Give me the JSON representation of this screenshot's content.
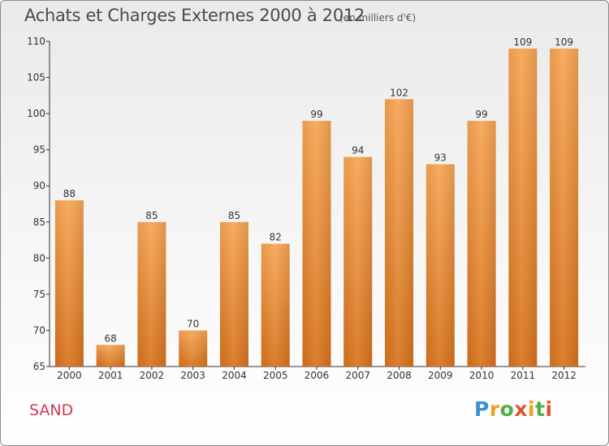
{
  "header": {
    "title": "Achats et Charges Externes 2000 à 2012",
    "subtitle": "(en milliers d'€)"
  },
  "footer": {
    "city": "SAND",
    "logo": [
      "P",
      "r",
      "o",
      "x",
      "i",
      "t",
      "i"
    ]
  },
  "colors": {
    "bar_light": "#f7a553",
    "bar_dark": "#d8731d",
    "title": "#4a4a4a",
    "city": "#d03a52"
  },
  "chart_data": {
    "type": "bar",
    "title": "Achats et Charges Externes 2000 à 2012",
    "subtitle": "(en milliers d'€)",
    "categories": [
      "2000",
      "2001",
      "2002",
      "2003",
      "2004",
      "2005",
      "2006",
      "2007",
      "2008",
      "2009",
      "2010",
      "2011",
      "2012"
    ],
    "values": [
      88,
      68,
      85,
      70,
      85,
      82,
      99,
      94,
      102,
      93,
      99,
      109,
      109
    ],
    "ylim": [
      65,
      110
    ],
    "yticks": [
      65,
      70,
      75,
      80,
      85,
      90,
      95,
      100,
      105,
      110
    ],
    "grid": false,
    "data_labels": true
  }
}
